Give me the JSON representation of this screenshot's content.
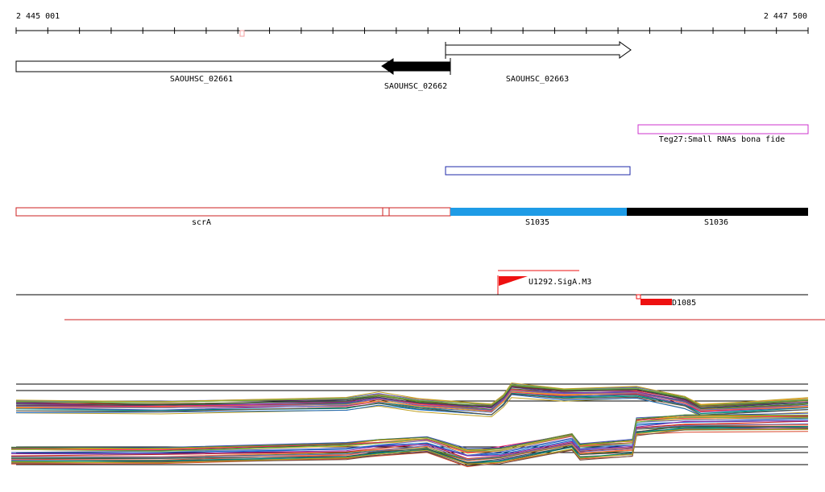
{
  "ruler": {
    "start_label": "2 445 001",
    "end_label": "2 447 500"
  },
  "genes": [
    {
      "label": "SAOUHSC_02661",
      "strand": "-",
      "style": "outline"
    },
    {
      "label": "SAOUHSC_02662",
      "strand": "-",
      "style": "filled"
    },
    {
      "label": "SAOUHSC_02663",
      "strand": "+",
      "style": "outline"
    }
  ],
  "srna_track": {
    "label": "Teg27:Small RNAs bona fide",
    "color": "#cc33cc"
  },
  "feature_track": {
    "color": "#1f2aa8"
  },
  "segments": [
    {
      "label": "scrA",
      "style": "outline",
      "color": "#cc2222"
    },
    {
      "label": "S1035",
      "style": "filled",
      "color": "#1e9be6"
    },
    {
      "label": "S1036",
      "style": "filled",
      "color": "#000000"
    }
  ],
  "annotations": [
    {
      "label": "U1292.SigA.M3",
      "color": "#ee1111"
    },
    {
      "label": "D1085",
      "color": "#ee1111"
    }
  ],
  "profile_colors": [
    "#d9472b",
    "#2e7d32",
    "#1565c0",
    "#8e24aa",
    "#f9a825",
    "#00897b",
    "#6d4c41",
    "#e91e63",
    "#558b2f",
    "#37474f",
    "#ff7043",
    "#5c6bc0",
    "#7cb342",
    "#c0a020",
    "#3f51b5",
    "#b71c1c"
  ]
}
